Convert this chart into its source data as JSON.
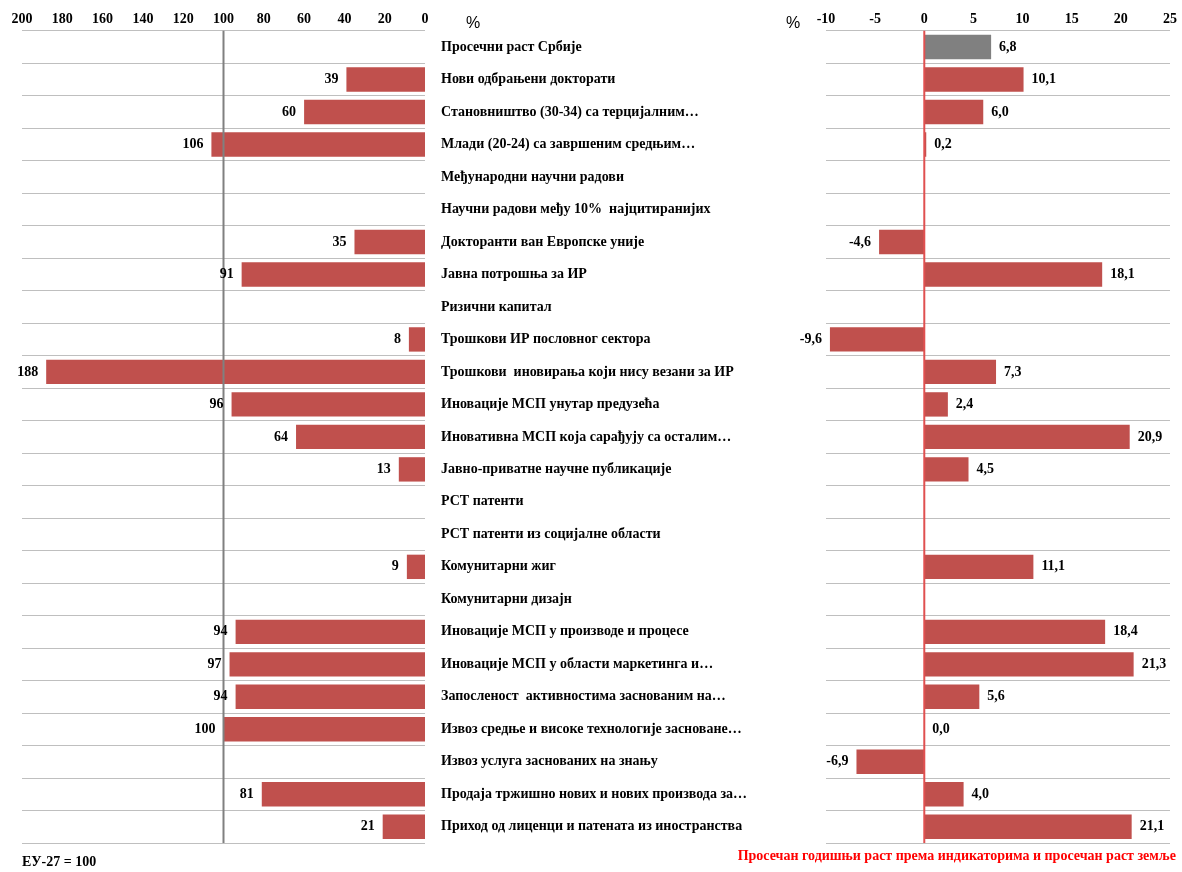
{
  "chart_data": [
    {
      "type": "bar",
      "orientation": "horizontal",
      "xlabel": "%",
      "categories": [
        null,
        null,
        null,
        null,
        null,
        null,
        null,
        null,
        null,
        null,
        null,
        null,
        null,
        null,
        null,
        null,
        null,
        null,
        null,
        null,
        null,
        null,
        null,
        null,
        null
      ],
      "values": [
        null,
        39,
        60,
        106,
        null,
        null,
        35,
        91,
        null,
        8,
        188,
        96,
        64,
        13,
        null,
        null,
        9,
        null,
        94,
        97,
        94,
        100,
        null,
        81,
        21
      ],
      "color": "#c0504d",
      "xlim": [
        200,
        0
      ],
      "xticks": [
        200,
        180,
        160,
        140,
        120,
        100,
        80,
        60,
        40,
        20,
        0
      ],
      "grid": "y",
      "data_labels": true,
      "ref_lines": [
        {
          "axis": "x",
          "value": 100,
          "color": "#808080"
        }
      ],
      "annotations": [
        "ЕУ-27 = 100"
      ]
    },
    {
      "type": "bar",
      "orientation": "horizontal",
      "xlabel": "%",
      "categories": [
        "Просечни раст Србије",
        "Нови одбрањени докторати",
        "Становништво (30-34) са терцијалним…",
        "Млади (20-24) са завршеним средњим…",
        "Међународни научни радови",
        "Научни радови међу 10%  најцитиранијих",
        "Докторанти ван Европске уније",
        "Јавна потрошња за ИР",
        "Ризични капитал",
        "Трошкови ИР пословног сектора",
        "Трошкови  иновирања који нису везани за ИР",
        "Иновације МСП унутар предузећа",
        "Иновативна МСП која сарађују са осталим…",
        "Јавно-приватне научне публикације",
        "РСТ патенти",
        "РСТ патенти из социјалне области",
        "Комунитарни жиг",
        "Комунитарни дизајн",
        "Иновације МСП у производе и процесе",
        "Иновације МСП у области маркетинга и…",
        "Запосленост  активностима заснованим на…",
        "Извоз средње и високе технологије засноване…",
        "Извоз услуга заснованих на знању",
        "Продаја тржишно нових и нових производа за…",
        "Приход од лиценци и патената из иностранства"
      ],
      "values": [
        6.8,
        10.1,
        6.0,
        0.2,
        null,
        null,
        -4.6,
        18.1,
        null,
        -9.6,
        7.3,
        2.4,
        20.9,
        4.5,
        null,
        null,
        11.1,
        null,
        18.4,
        21.3,
        5.6,
        0.0,
        -6.9,
        4.0,
        21.1
      ],
      "value_labels": [
        "6,8",
        "10,1",
        "6,0",
        "0,2",
        null,
        null,
        "-4,6",
        "18,1",
        null,
        "-9,6",
        "7,3",
        "2,4",
        "20,9",
        "4,5",
        null,
        null,
        "11,1",
        null,
        "18,4",
        "21,3",
        "5,6",
        "0,0",
        "-6,9",
        "4,0",
        "21,1"
      ],
      "colors": [
        "#808080",
        "#c0504d",
        "#c0504d",
        "#c0504d",
        "#c0504d",
        "#c0504d",
        "#c0504d",
        "#c0504d",
        "#c0504d",
        "#c0504d",
        "#c0504d",
        "#c0504d",
        "#c0504d",
        "#c0504d",
        "#c0504d",
        "#c0504d",
        "#c0504d",
        "#c0504d",
        "#c0504d",
        "#c0504d",
        "#c0504d",
        "#c0504d",
        "#c0504d",
        "#c0504d",
        "#c0504d"
      ],
      "xlim": [
        -10,
        25
      ],
      "xticks": [
        -10,
        -5,
        0,
        5,
        10,
        15,
        20,
        25
      ],
      "grid": "y",
      "ref_lines": [
        {
          "axis": "x",
          "value": 0,
          "color": "#e05050"
        }
      ],
      "annotations": [
        "Просечан годишњи раст према индикаторима и просечан раст земље"
      ]
    }
  ]
}
